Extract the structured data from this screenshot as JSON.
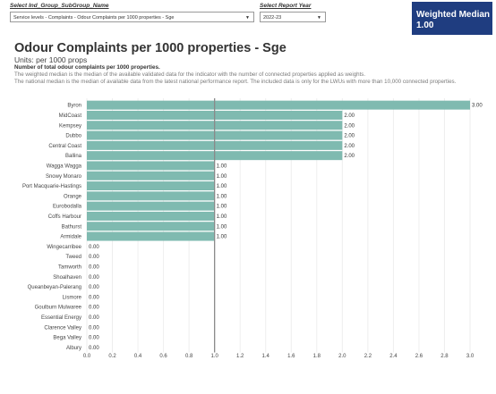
{
  "filters": {
    "group_label": "Select Ind_Group_SubGroup_Name",
    "group_value": "Service levels - Complaints - Odour Complaints per 1000 properties - Sge",
    "year_label": "Select Report Year",
    "year_value": "2022-23"
  },
  "kpi": {
    "label": "Weighted Median",
    "value": "1.00"
  },
  "header": {
    "title": "Odour Complaints per 1000 properties - Sge",
    "units": "Units: per 1000 props",
    "description": "Number of total odour complaints per 1000 properties.",
    "note1": "The weighted median is the median of the available validated data for the indicator with the number of connected properties applied as weights.",
    "note2": "The national median is the median of available data from the latest national performance report. The included data is only for the LWUs with more than 10,000 connected properties."
  },
  "chart_data": {
    "type": "bar",
    "orientation": "horizontal",
    "categories": [
      "Byron",
      "MidCoast",
      "Kempsey",
      "Dubbo",
      "Central Coast",
      "Ballina",
      "Wagga Wagga",
      "Snowy Monaro",
      "Port Macquarie-Hastings",
      "Orange",
      "Eurobodalla",
      "Coffs Harbour",
      "Bathurst",
      "Armidale",
      "Wingecarribee",
      "Tweed",
      "Tamworth",
      "Shoalhaven",
      "Queanbeyan-Palerang",
      "Lismore",
      "Goulburn Mulwaree",
      "Essential Energy",
      "Clarence Valley",
      "Bega Valley",
      "Albury"
    ],
    "values": [
      3.0,
      2.0,
      2.0,
      2.0,
      2.0,
      2.0,
      1.0,
      1.0,
      1.0,
      1.0,
      1.0,
      1.0,
      1.0,
      1.0,
      0.0,
      0.0,
      0.0,
      0.0,
      0.0,
      0.0,
      0.0,
      0.0,
      0.0,
      0.0,
      0.0
    ],
    "value_labels": [
      "3.00",
      "2.00",
      "2.00",
      "2.00",
      "2.00",
      "2.00",
      "1.00",
      "1.00",
      "1.00",
      "1.00",
      "1.00",
      "1.00",
      "1.00",
      "1.00",
      "0.00",
      "0.00",
      "0.00",
      "0.00",
      "0.00",
      "0.00",
      "0.00",
      "0.00",
      "0.00",
      "0.00",
      "0.00"
    ],
    "xlim": [
      0,
      3.0
    ],
    "xticks": [
      0.0,
      0.2,
      0.4,
      0.6,
      0.8,
      1.0,
      1.2,
      1.4,
      1.6,
      1.8,
      2.0,
      2.2,
      2.4,
      2.6,
      2.8,
      3.0
    ],
    "xtick_labels": [
      "0.0",
      "0.2",
      "0.4",
      "0.6",
      "0.8",
      "1.0",
      "1.2",
      "1.4",
      "1.6",
      "1.8",
      "2.0",
      "2.2",
      "2.4",
      "2.6",
      "2.8",
      "3.0"
    ],
    "reference_line": 1.0,
    "grid": true,
    "bar_color": "#7fbab0",
    "reference_line_color": "#8a8a8a"
  }
}
